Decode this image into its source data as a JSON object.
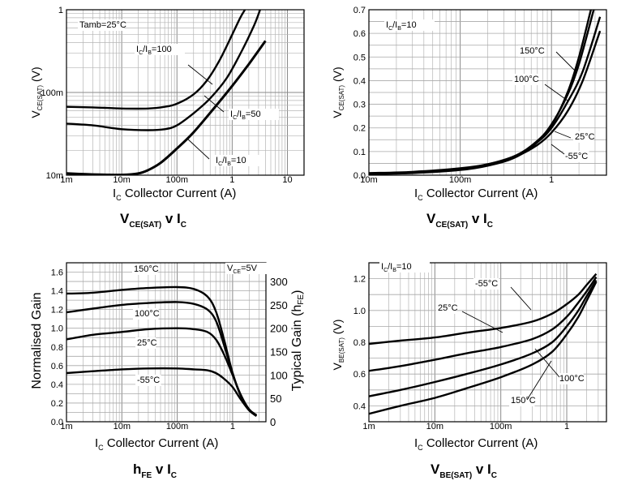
{
  "chart_data": [
    {
      "id": "vce_lin_log",
      "type": "line",
      "title_main": "V",
      "title_sub": "CE(SAT)",
      "title_v": "v I",
      "title_c": "C",
      "xlabel_pre": "I",
      "xlabel_sub": "C",
      "xlabel_text": "Collector Current (A)",
      "ylabel_pre": "V",
      "ylabel_sub": "CE(SAT)",
      "ylabel_unit": "(V)",
      "xscale": "log",
      "yscale": "log",
      "xlim": [
        0.001,
        20
      ],
      "ylim": [
        0.01,
        1
      ],
      "xticks": [
        {
          "v": 0.001,
          "label": "1m"
        },
        {
          "v": 0.01,
          "label": "10m"
        },
        {
          "v": 0.1,
          "label": "100m"
        },
        {
          "v": 1,
          "label": "1"
        },
        {
          "v": 10,
          "label": "10"
        }
      ],
      "yticks": [
        {
          "v": 0.01,
          "label": "10m"
        },
        {
          "v": 0.1,
          "label": "100m"
        },
        {
          "v": 1,
          "label": "1"
        }
      ],
      "annotations": [
        {
          "text": "Tamb=25°C"
        },
        {
          "pre": "I",
          "s1": "C",
          "mid": "/I",
          "s2": "B",
          "post": "=100"
        },
        {
          "pre": "I",
          "s1": "C",
          "mid": "/I",
          "s2": "B",
          "post": "=50"
        },
        {
          "pre": "I",
          "s1": "C",
          "mid": "/I",
          "s2": "B",
          "post": "=10"
        }
      ],
      "series": [
        {
          "name": "IC/IB=100",
          "x": [
            0.001,
            0.003,
            0.01,
            0.03,
            0.06,
            0.1,
            0.2,
            0.35,
            0.6,
            1.0,
            1.4,
            1.7
          ],
          "y": [
            0.067,
            0.066,
            0.064,
            0.064,
            0.067,
            0.073,
            0.095,
            0.14,
            0.25,
            0.5,
            0.8,
            1.0
          ]
        },
        {
          "name": "IC/IB=50",
          "x": [
            0.001,
            0.003,
            0.01,
            0.03,
            0.06,
            0.1,
            0.2,
            0.4,
            0.8,
            1.5,
            2.5,
            3.2
          ],
          "y": [
            0.042,
            0.04,
            0.036,
            0.035,
            0.036,
            0.04,
            0.056,
            0.085,
            0.15,
            0.32,
            0.65,
            1.0
          ]
        },
        {
          "name": "IC/IB=10",
          "x": [
            0.001,
            0.003,
            0.01,
            0.02,
            0.03,
            0.05,
            0.1,
            0.2,
            0.5,
            1.0,
            2.0,
            4.0
          ],
          "y": [
            0.0105,
            0.0102,
            0.0101,
            0.0105,
            0.0115,
            0.014,
            0.021,
            0.033,
            0.068,
            0.12,
            0.22,
            0.42
          ]
        }
      ]
    },
    {
      "id": "vce_lin",
      "type": "line",
      "title_main": "V",
      "title_sub": "CE(SAT)",
      "title_v": "v I",
      "title_c": "C",
      "xlabel_pre": "I",
      "xlabel_sub": "C",
      "xlabel_text": "Collector Current (A)",
      "ylabel_pre": "V",
      "ylabel_sub": "CE(SAT)",
      "ylabel_unit": "(V)",
      "xscale": "log",
      "yscale": "linear",
      "xlim": [
        0.01,
        4
      ],
      "ylim": [
        0,
        0.7
      ],
      "xticks": [
        {
          "v": 0.01,
          "label": "10m"
        },
        {
          "v": 0.1,
          "label": "100m"
        },
        {
          "v": 1,
          "label": "1"
        }
      ],
      "yticks": [
        {
          "v": 0,
          "label": "0.0"
        },
        {
          "v": 0.1,
          "label": "0.1"
        },
        {
          "v": 0.2,
          "label": "0.2"
        },
        {
          "v": 0.3,
          "label": "0.3"
        },
        {
          "v": 0.4,
          "label": "0.4"
        },
        {
          "v": 0.5,
          "label": "0.5"
        },
        {
          "v": 0.6,
          "label": "0.6"
        },
        {
          "v": 0.7,
          "label": "0.7"
        }
      ],
      "annotations": [
        {
          "pre": "I",
          "s1": "C",
          "mid": "/I",
          "s2": "B",
          "post": "=10"
        },
        {
          "text": "150°C"
        },
        {
          "text": "100°C"
        },
        {
          "text": "25°C"
        },
        {
          "text": "-55°C"
        }
      ],
      "series": [
        {
          "name": "150°C",
          "x": [
            0.01,
            0.03,
            0.1,
            0.2,
            0.4,
            0.7,
            1.0,
            1.5,
            2.0,
            2.7
          ],
          "y": [
            0.005,
            0.009,
            0.022,
            0.04,
            0.075,
            0.14,
            0.21,
            0.35,
            0.5,
            0.7
          ]
        },
        {
          "name": "100°C",
          "x": [
            0.01,
            0.03,
            0.1,
            0.2,
            0.4,
            0.7,
            1.0,
            1.5,
            2.0,
            2.9
          ],
          "y": [
            0.006,
            0.01,
            0.024,
            0.043,
            0.08,
            0.145,
            0.215,
            0.34,
            0.47,
            0.7
          ]
        },
        {
          "name": "25°C",
          "x": [
            0.01,
            0.03,
            0.1,
            0.2,
            0.4,
            0.7,
            1.0,
            1.5,
            2.2,
            3.4
          ],
          "y": [
            0.007,
            0.012,
            0.027,
            0.046,
            0.082,
            0.14,
            0.2,
            0.31,
            0.44,
            0.67
          ]
        },
        {
          "name": "-55°C",
          "x": [
            0.01,
            0.03,
            0.1,
            0.2,
            0.4,
            0.7,
            1.0,
            1.5,
            2.2,
            3.4
          ],
          "y": [
            0.009,
            0.014,
            0.029,
            0.046,
            0.078,
            0.128,
            0.18,
            0.27,
            0.4,
            0.61
          ]
        }
      ]
    },
    {
      "id": "hfe",
      "type": "line",
      "title_main": "h",
      "title_sub": "FE",
      "title_v": "v I",
      "title_c": "C",
      "xlabel_pre": "I",
      "xlabel_sub": "C",
      "xlabel_text": "Collector Current (A)",
      "ylabel_text": "Normalised Gain",
      "y2label_text": "Typical Gain (h",
      "y2label_sub": "FE",
      "y2label_end": ")",
      "xscale": "log",
      "yscale": "linear",
      "xlim": [
        0.001,
        4
      ],
      "ylim": [
        0,
        1.7
      ],
      "y2lim": [
        0,
        340
      ],
      "xticks": [
        {
          "v": 0.001,
          "label": "1m"
        },
        {
          "v": 0.01,
          "label": "10m"
        },
        {
          "v": 0.1,
          "label": "100m"
        },
        {
          "v": 1,
          "label": "1"
        }
      ],
      "yticks": [
        {
          "v": 0,
          "label": "0.0"
        },
        {
          "v": 0.2,
          "label": "0.2"
        },
        {
          "v": 0.4,
          "label": "0.4"
        },
        {
          "v": 0.6,
          "label": "0.6"
        },
        {
          "v": 0.8,
          "label": "0.8"
        },
        {
          "v": 1.0,
          "label": "1.0"
        },
        {
          "v": 1.2,
          "label": "1.2"
        },
        {
          "v": 1.4,
          "label": "1.4"
        },
        {
          "v": 1.6,
          "label": "1.6"
        }
      ],
      "y2ticks": [
        {
          "v": 0,
          "label": "0"
        },
        {
          "v": 50,
          "label": "50"
        },
        {
          "v": 100,
          "label": "100"
        },
        {
          "v": 150,
          "label": "150"
        },
        {
          "v": 200,
          "label": "200"
        },
        {
          "v": 250,
          "label": "250"
        },
        {
          "v": 300,
          "label": "300"
        }
      ],
      "annotations": [
        {
          "pre": "V",
          "s1": "CE",
          "post": "=5V"
        },
        {
          "text": "150°C"
        },
        {
          "text": "100°C"
        },
        {
          "text": "25°C"
        },
        {
          "text": "-55°C"
        }
      ],
      "series": [
        {
          "name": "150°C",
          "x": [
            0.001,
            0.003,
            0.01,
            0.03,
            0.1,
            0.2,
            0.35,
            0.5,
            0.7,
            1.0,
            1.4,
            2.0,
            2.7
          ],
          "y": [
            1.37,
            1.38,
            1.41,
            1.43,
            1.44,
            1.42,
            1.34,
            1.18,
            0.88,
            0.52,
            0.28,
            0.13,
            0.07
          ]
        },
        {
          "name": "100°C",
          "x": [
            0.001,
            0.003,
            0.01,
            0.03,
            0.1,
            0.2,
            0.35,
            0.5,
            0.7,
            1.0,
            1.4,
            2.0,
            2.7
          ],
          "y": [
            1.17,
            1.21,
            1.25,
            1.27,
            1.28,
            1.26,
            1.2,
            1.08,
            0.82,
            0.52,
            0.28,
            0.13,
            0.07
          ]
        },
        {
          "name": "25°C",
          "x": [
            0.001,
            0.003,
            0.01,
            0.03,
            0.1,
            0.2,
            0.35,
            0.5,
            0.7,
            1.0,
            1.4,
            2.0,
            2.7
          ],
          "y": [
            0.88,
            0.93,
            0.96,
            0.99,
            1.0,
            0.99,
            0.96,
            0.88,
            0.72,
            0.5,
            0.29,
            0.13,
            0.07
          ]
        },
        {
          "name": "-55°C",
          "x": [
            0.001,
            0.003,
            0.01,
            0.03,
            0.1,
            0.2,
            0.35,
            0.5,
            0.7,
            1.0,
            1.4,
            2.0,
            2.7
          ],
          "y": [
            0.52,
            0.54,
            0.56,
            0.57,
            0.57,
            0.56,
            0.55,
            0.52,
            0.46,
            0.37,
            0.24,
            0.12,
            0.06
          ]
        }
      ]
    },
    {
      "id": "vbe",
      "type": "line",
      "title_main": "V",
      "title_sub": "BE(SAT)",
      "title_v": "v I",
      "title_c": "C",
      "xlabel_pre": "I",
      "xlabel_sub": "C",
      "xlabel_text": "Collector Current (A)",
      "ylabel_pre": "V",
      "ylabel_sub": "BE(SAT)",
      "ylabel_unit": "(V)",
      "xscale": "log",
      "yscale": "linear",
      "xlim": [
        0.001,
        4
      ],
      "ylim": [
        0.3,
        1.3
      ],
      "xticks": [
        {
          "v": 0.001,
          "label": "1m"
        },
        {
          "v": 0.01,
          "label": "10m"
        },
        {
          "v": 0.1,
          "label": "100m"
        },
        {
          "v": 1,
          "label": "1"
        }
      ],
      "yticks": [
        {
          "v": 0.4,
          "label": "0.4"
        },
        {
          "v": 0.6,
          "label": "0.6"
        },
        {
          "v": 0.8,
          "label": "0.8"
        },
        {
          "v": 1.0,
          "label": "1.0"
        },
        {
          "v": 1.2,
          "label": "1.2"
        }
      ],
      "annotations": [
        {
          "pre": "I",
          "s1": "C",
          "mid": "/I",
          "s2": "B",
          "post": "=10"
        },
        {
          "text": "-55°C"
        },
        {
          "text": "25°C"
        },
        {
          "text": "100°C"
        },
        {
          "text": "150°C"
        }
      ],
      "series": [
        {
          "name": "-55°C",
          "x": [
            0.001,
            0.003,
            0.01,
            0.03,
            0.1,
            0.3,
            0.6,
            1.0,
            1.5,
            2.0,
            2.8
          ],
          "y": [
            0.79,
            0.81,
            0.83,
            0.86,
            0.89,
            0.93,
            0.98,
            1.04,
            1.1,
            1.16,
            1.23
          ]
        },
        {
          "name": "25°C",
          "x": [
            0.001,
            0.003,
            0.01,
            0.03,
            0.1,
            0.3,
            0.6,
            1.0,
            1.5,
            2.0,
            2.8
          ],
          "y": [
            0.62,
            0.65,
            0.69,
            0.73,
            0.77,
            0.82,
            0.88,
            0.96,
            1.05,
            1.12,
            1.21
          ]
        },
        {
          "name": "100°C",
          "x": [
            0.001,
            0.003,
            0.01,
            0.03,
            0.1,
            0.3,
            0.6,
            1.0,
            1.5,
            2.0,
            2.8
          ],
          "y": [
            0.46,
            0.5,
            0.55,
            0.6,
            0.66,
            0.73,
            0.8,
            0.9,
            1.0,
            1.09,
            1.19
          ]
        },
        {
          "name": "150°C",
          "x": [
            0.001,
            0.003,
            0.01,
            0.03,
            0.1,
            0.3,
            0.6,
            1.0,
            1.5,
            2.0,
            2.8
          ],
          "y": [
            0.35,
            0.4,
            0.45,
            0.51,
            0.58,
            0.66,
            0.74,
            0.85,
            0.96,
            1.06,
            1.18
          ]
        }
      ]
    }
  ]
}
